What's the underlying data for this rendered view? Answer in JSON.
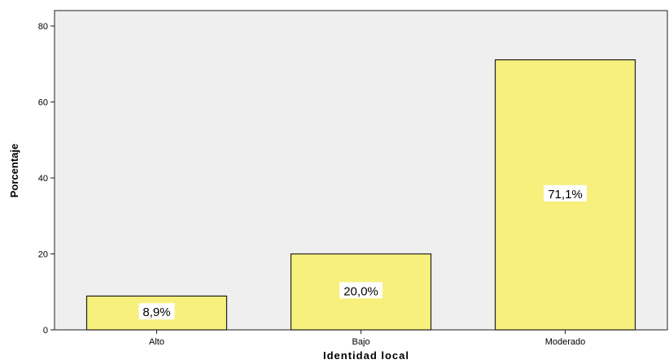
{
  "chart_data": {
    "type": "bar",
    "title": "",
    "xlabel": "Identidad local",
    "ylabel": "Porcentaje",
    "categories": [
      "Alto",
      "Bajo",
      "Moderado"
    ],
    "values": [
      8.9,
      20.0,
      71.1
    ],
    "data_labels": [
      "8,9%",
      "20,0%",
      "71,1%"
    ],
    "ylim": [
      0,
      80
    ],
    "yticks": [
      0,
      20,
      40,
      60,
      80
    ],
    "ytick_labels": [
      "0",
      "20",
      "40",
      "60",
      "80"
    ],
    "grid": false,
    "legend": "none",
    "colors": {
      "bar_fill": "#f7f07c",
      "bar_stroke": "#222222",
      "plot_background": "#efefef",
      "label_box": "#ffffff"
    }
  }
}
